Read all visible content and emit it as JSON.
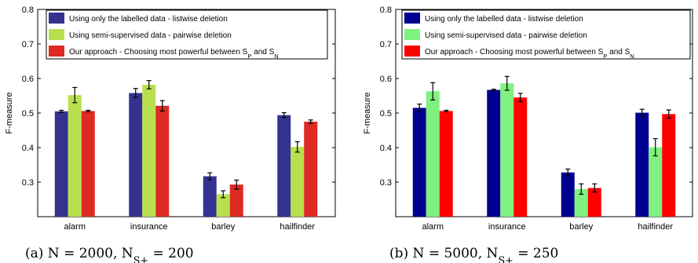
{
  "chart_data": [
    {
      "type": "bar",
      "ylabel": "F-measure",
      "ylim": [
        0.2,
        0.8
      ],
      "yticks": [
        0.3,
        0.4,
        0.5,
        0.6,
        0.7,
        0.8
      ],
      "grid": false,
      "legend_position": "top",
      "caption": "(a) N = 2000,  N_S+ = 200",
      "categories": [
        "alarm",
        "insurance",
        "barley",
        "hailfinder"
      ],
      "series": [
        {
          "name": "Using only the labelled data  - listwise deletion",
          "color": "#33338f",
          "values": [
            0.505,
            0.558,
            0.317,
            0.494
          ],
          "errors": [
            0.003,
            0.013,
            0.01,
            0.007
          ]
        },
        {
          "name": "Using semi-supervised data - pairwise deletion",
          "color": "#b8e04e",
          "values": [
            0.552,
            0.582,
            0.265,
            0.402
          ],
          "errors": [
            0.022,
            0.012,
            0.01,
            0.015
          ]
        },
        {
          "name": "Our approach - Choosing most powerful between S_P and S_N",
          "color": "#dd2a22",
          "values": [
            0.506,
            0.521,
            0.293,
            0.475
          ],
          "errors": [
            0.002,
            0.015,
            0.013,
            0.005
          ]
        }
      ]
    },
    {
      "type": "bar",
      "ylabel": "F-measure",
      "ylim": [
        0.2,
        0.8
      ],
      "yticks": [
        0.3,
        0.4,
        0.5,
        0.6,
        0.7,
        0.8
      ],
      "grid": false,
      "legend_position": "top",
      "caption": "(b) N = 5000,  N_S+ = 250",
      "categories": [
        "alarm",
        "insurance",
        "barley",
        "hailfinder"
      ],
      "series": [
        {
          "name": "Using only the labelled data  - listwise deletion",
          "color": "#000090",
          "values": [
            0.515,
            0.567,
            0.328,
            0.501
          ],
          "errors": [
            0.011,
            0.002,
            0.01,
            0.01
          ]
        },
        {
          "name": "Using semi-supervised data - pairwise deletion",
          "color": "#80f080",
          "values": [
            0.563,
            0.586,
            0.28,
            0.401
          ],
          "errors": [
            0.025,
            0.02,
            0.015,
            0.025
          ]
        },
        {
          "name": "Our approach - Choosing most powerful between S_P and S_N",
          "color": "#ff0000",
          "values": [
            0.506,
            0.545,
            0.283,
            0.497
          ],
          "errors": [
            0.002,
            0.012,
            0.012,
            0.012
          ]
        }
      ]
    }
  ]
}
